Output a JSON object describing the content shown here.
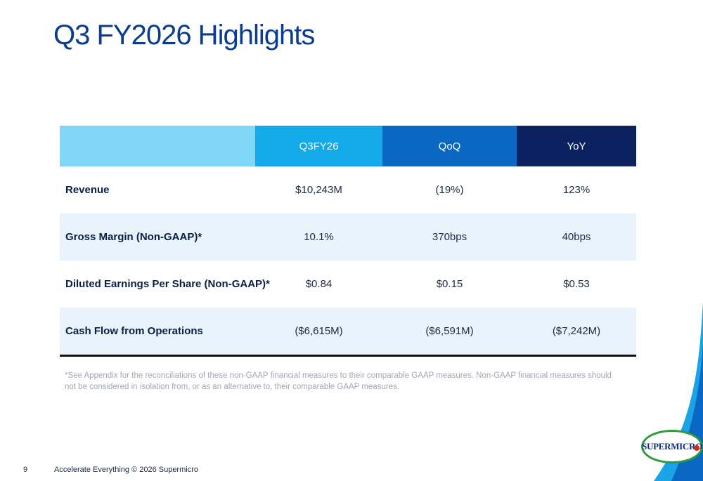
{
  "slide": {
    "title": "Q3 FY2026 Highlights",
    "page_number": "9",
    "footer_text": "Accelerate Everything © 2026 Supermicro",
    "logo_text": "SUPERMICRO"
  },
  "table": {
    "headers": [
      "",
      "Q3FY26",
      "QoQ",
      "YoY"
    ],
    "rows": [
      {
        "label": "Revenue",
        "q3fy26": "$10,243M",
        "qoq": "(19%)",
        "yoy": "123%"
      },
      {
        "label": "Gross Margin (Non-GAAP)*",
        "q3fy26": "10.1%",
        "qoq": "370bps",
        "yoy": "40bps"
      },
      {
        "label": "Diluted Earnings Per Share (Non-GAAP)*",
        "q3fy26": "$0.84",
        "qoq": "$0.15",
        "yoy": "$0.53"
      },
      {
        "label": "Cash Flow from Operations",
        "q3fy26": "($6,615M)",
        "qoq": "($6,591M)",
        "yoy": "($7,242M)"
      }
    ]
  },
  "footnote": "*See Appendix for the reconciliations of these non-GAAP financial measures to their comparable GAAP measures. Non-GAAP financial measures should not be considered in isolation from, or as an alternative to, their comparable GAAP measures.",
  "colors": {
    "title": "#0a3d8f",
    "header_light": "#7fd6f7",
    "header_cyan": "#14a9e8",
    "header_blue": "#0a67c2",
    "header_navy": "#0c2260",
    "row_alt": "#e9f3fb",
    "logo_green": "#2e9b3a",
    "logo_red": "#e2231a"
  }
}
